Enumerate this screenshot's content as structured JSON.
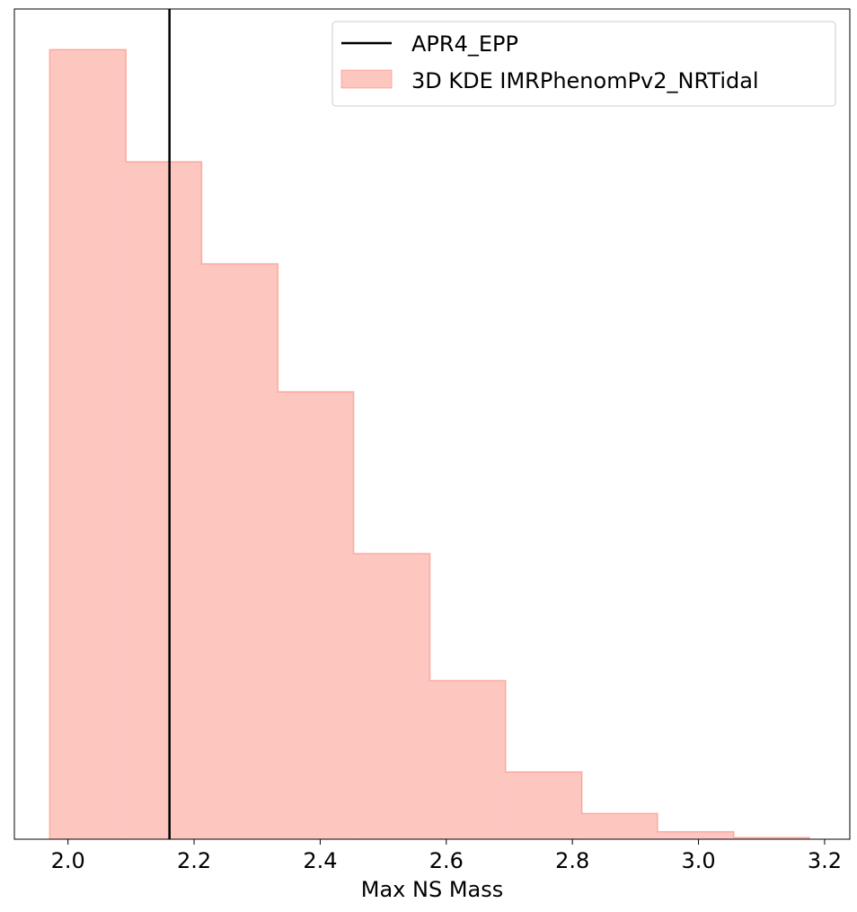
{
  "chart_data": {
    "type": "histogram",
    "title": "",
    "xlabel": "Max NS Mass",
    "ylabel": "",
    "xlim": [
      1.915,
      3.24
    ],
    "ylim": [
      0,
      1.0
    ],
    "xticks": [
      2.0,
      2.2,
      2.4,
      2.6,
      2.8,
      3.0,
      3.2
    ],
    "xtick_labels": [
      "2.0",
      "2.2",
      "2.4",
      "2.6",
      "2.8",
      "3.0",
      "3.2"
    ],
    "yticks_visible": false,
    "grid": false,
    "legend_position": "top-right",
    "series": [
      {
        "name": "3D KDE IMRPhenomPv2_NRTidal",
        "kind": "histogram",
        "color": "#fa8072",
        "alpha": 0.45,
        "bin_edges": [
          1.971,
          2.092,
          2.212,
          2.333,
          2.453,
          2.574,
          2.694,
          2.815,
          2.935,
          3.056,
          3.176
        ],
        "heights": [
          0.951,
          0.816,
          0.693,
          0.539,
          0.344,
          0.191,
          0.081,
          0.031,
          0.009,
          0.002
        ]
      },
      {
        "name": "APR4_EPP",
        "kind": "vline",
        "color": "#000000",
        "x": 2.161
      }
    ]
  }
}
